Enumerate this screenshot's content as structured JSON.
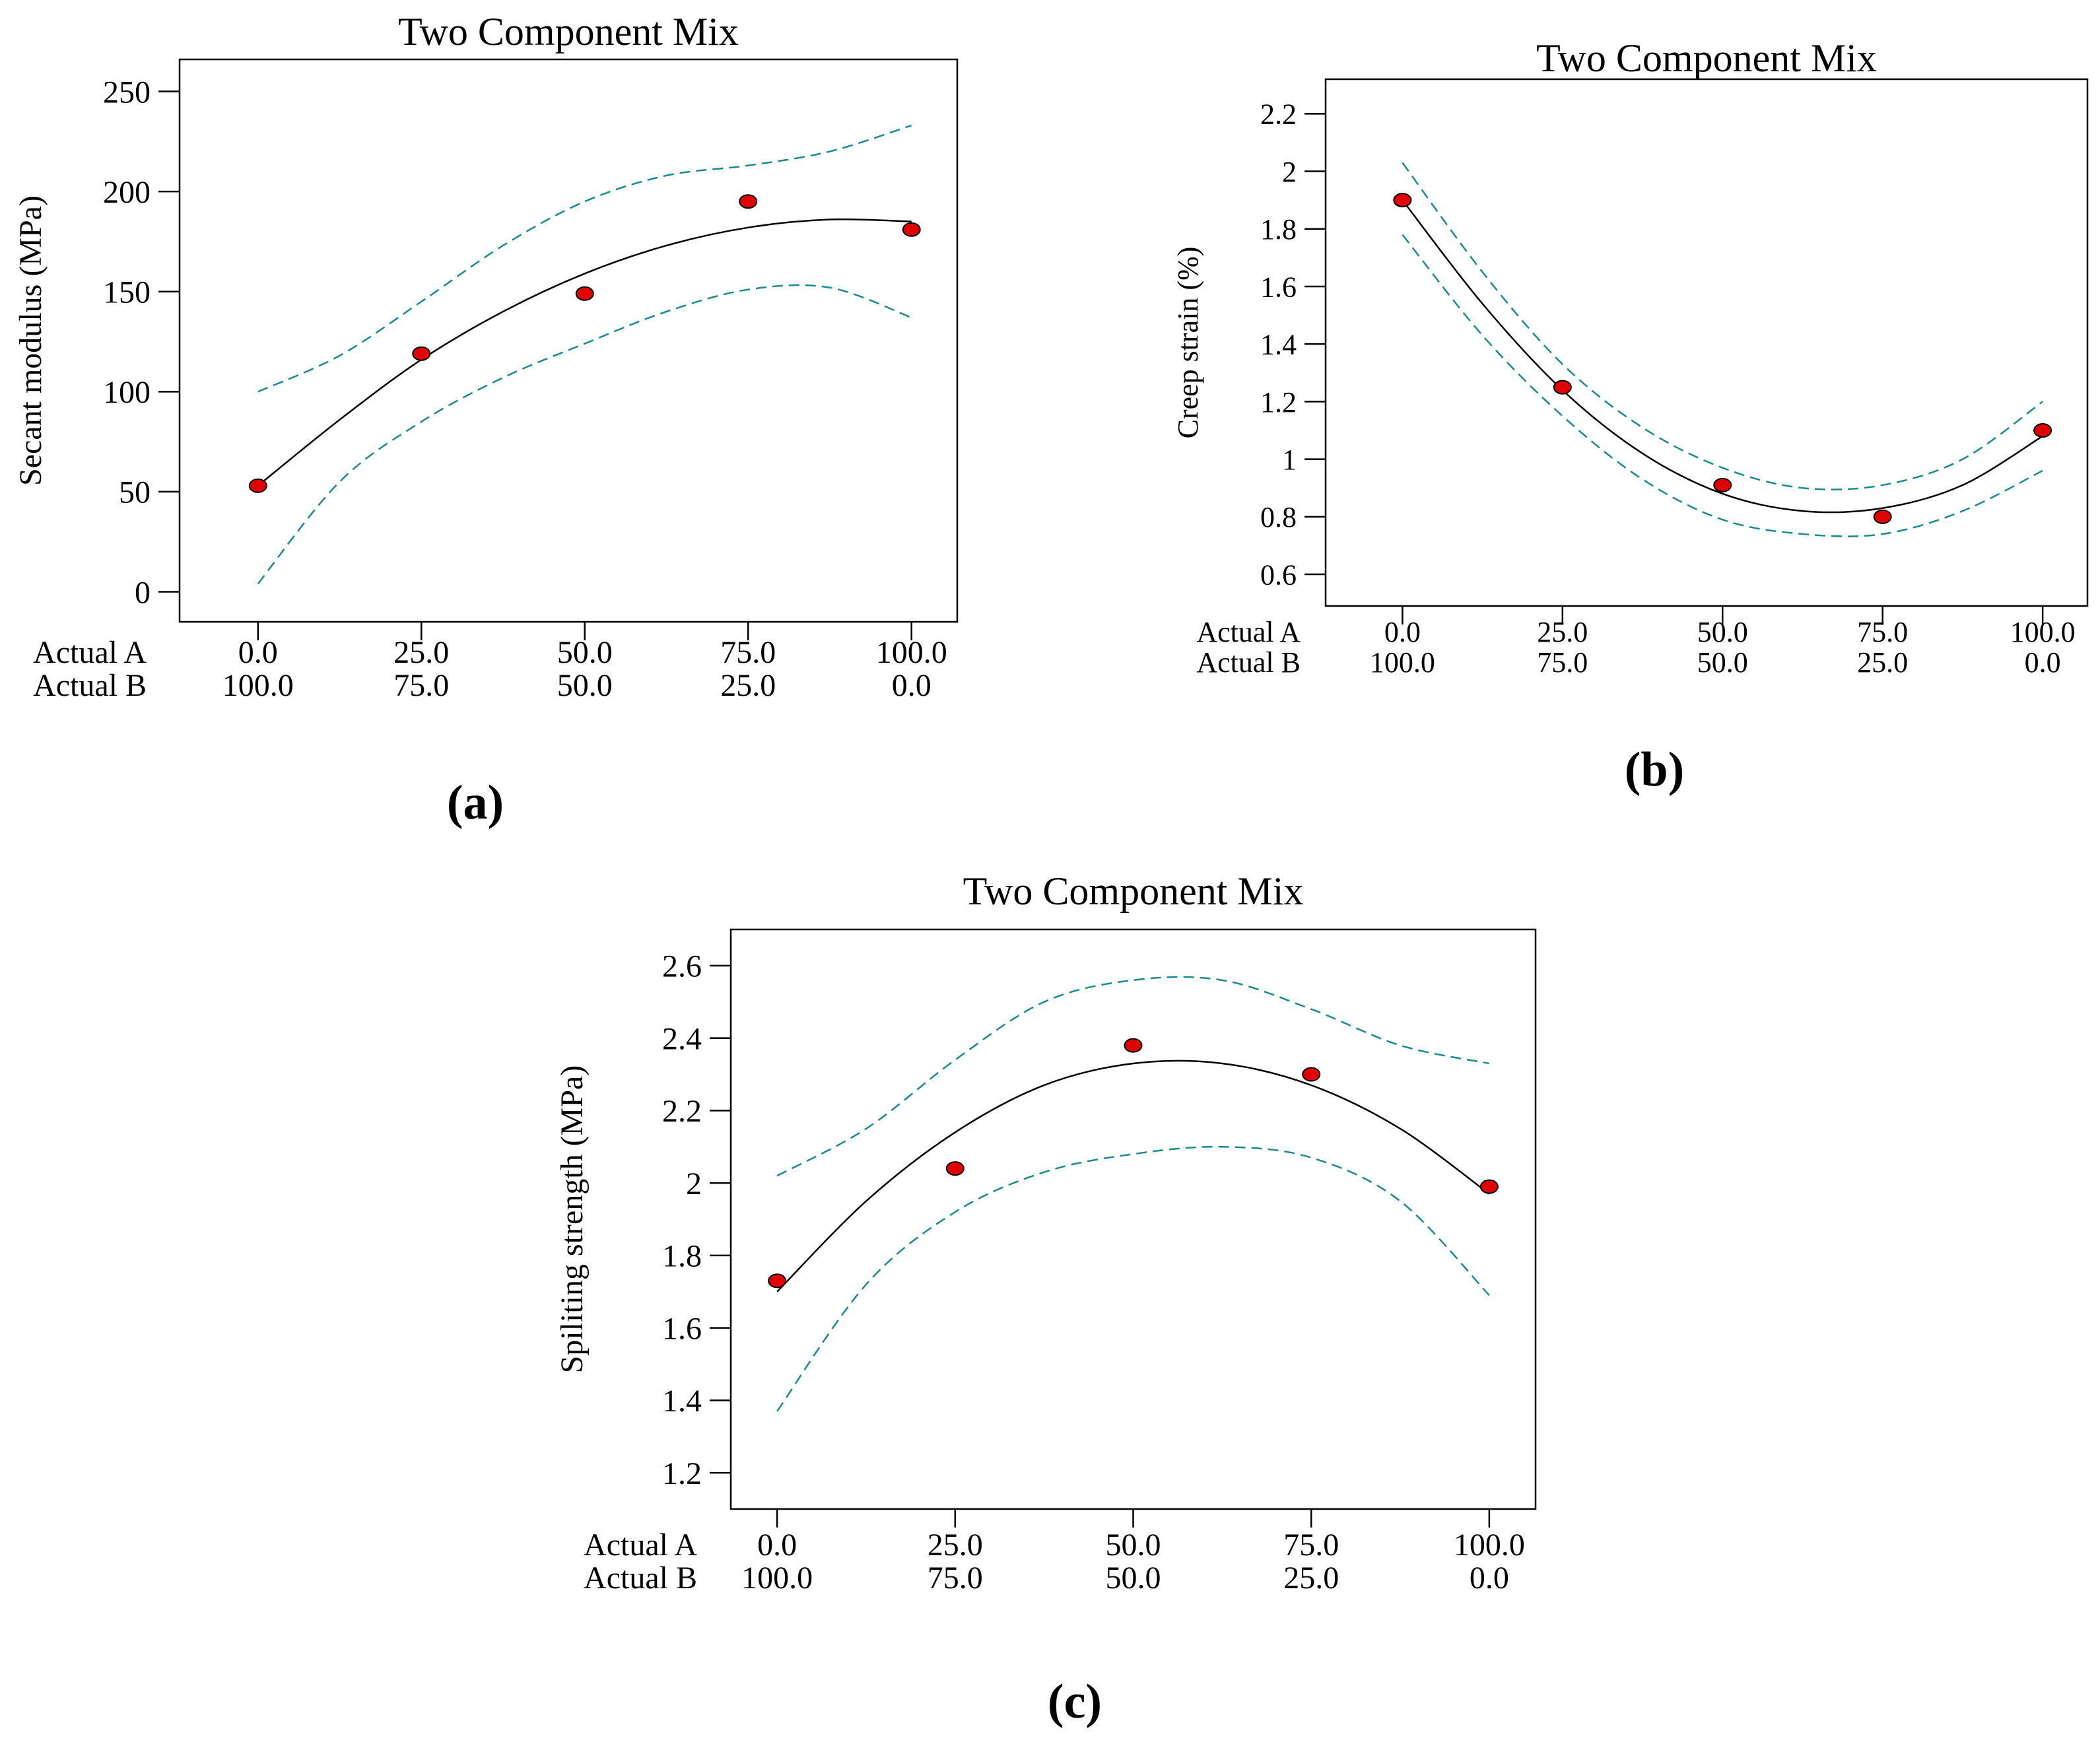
{
  "chart_data": [
    {
      "panel_label": "(a)",
      "type": "scatter",
      "title": "Two Component Mix",
      "ylabel": "Secant modulus (MPa)",
      "ylim": [
        -15,
        266
      ],
      "yticks": [
        0,
        50,
        100,
        150,
        200,
        250
      ],
      "y_tick_labels": [
        "0",
        "50",
        "100",
        "150",
        "200",
        "250"
      ],
      "xlim": [
        -12,
        107
      ],
      "xticks": [
        0,
        25,
        50,
        75,
        100
      ],
      "x_label_rows": [
        {
          "name": "Actual A",
          "labels": [
            "0.0",
            "25.0",
            "50.0",
            "75.0",
            "100.0"
          ]
        },
        {
          "name": "Actual B",
          "labels": [
            "100.0",
            "75.0",
            "50.0",
            "25.0",
            "0.0"
          ]
        }
      ],
      "points": {
        "x": [
          0,
          25,
          50,
          75,
          100
        ],
        "y": [
          53,
          119,
          149,
          195,
          181
        ]
      },
      "fit": {
        "x": [
          0,
          12.5,
          25,
          37.5,
          50,
          62.5,
          75,
          87.5,
          100
        ],
        "y": [
          53,
          86,
          116,
          140,
          159,
          173,
          182,
          186,
          185
        ]
      },
      "ci_upper": {
        "x": [
          0,
          12.5,
          25,
          37.5,
          50,
          62.5,
          75,
          87.5,
          100
        ],
        "y": [
          100,
          118,
          145,
          173,
          195,
          208,
          213,
          220,
          233
        ]
      },
      "ci_lower": {
        "x": [
          0,
          12.5,
          25,
          37.5,
          50,
          62.5,
          75,
          87.5,
          100
        ],
        "y": [
          4,
          55,
          85,
          107,
          124,
          140,
          151,
          152,
          137
        ]
      }
    },
    {
      "panel_label": "(b)",
      "type": "scatter",
      "title": "Two Component Mix",
      "ylabel": "Creep strain (%)",
      "ylim": [
        0.49,
        2.32
      ],
      "yticks": [
        0.6,
        0.8,
        1.0,
        1.2,
        1.4,
        1.6,
        1.8,
        2.0,
        2.2
      ],
      "y_tick_labels": [
        "0.6",
        "0.8",
        "1",
        "1.2",
        "1.4",
        "1.6",
        "1.8",
        "2",
        "2.2"
      ],
      "xlim": [
        -12,
        107
      ],
      "xticks": [
        0,
        25,
        50,
        75,
        100
      ],
      "x_label_rows": [
        {
          "name": "Actual A",
          "labels": [
            "0.0",
            "25.0",
            "50.0",
            "75.0",
            "100.0"
          ]
        },
        {
          "name": "Actual B",
          "labels": [
            "100.0",
            "75.0",
            "50.0",
            "25.0",
            "0.0"
          ]
        }
      ],
      "points": {
        "x": [
          0,
          25,
          50,
          75,
          100
        ],
        "y": [
          1.9,
          1.25,
          0.91,
          0.8,
          1.1
        ]
      },
      "fit": {
        "x": [
          0,
          12.5,
          25,
          37.5,
          50,
          62.5,
          75,
          87.5,
          100
        ],
        "y": [
          1.9,
          1.54,
          1.24,
          1.02,
          0.88,
          0.82,
          0.83,
          0.91,
          1.08
        ]
      },
      "ci_upper": {
        "x": [
          0,
          12.5,
          25,
          37.5,
          50,
          62.5,
          75,
          87.5,
          100
        ],
        "y": [
          2.03,
          1.65,
          1.33,
          1.11,
          0.97,
          0.9,
          0.91,
          1.0,
          1.2
        ]
      },
      "ci_lower": {
        "x": [
          0,
          12.5,
          25,
          37.5,
          50,
          62.5,
          75,
          87.5,
          100
        ],
        "y": [
          1.78,
          1.43,
          1.15,
          0.93,
          0.79,
          0.74,
          0.74,
          0.82,
          0.96
        ]
      }
    },
    {
      "panel_label": "(c)",
      "type": "scatter",
      "title": "Two Component Mix",
      "ylabel": "Spiliting strength (MPa)",
      "ylim": [
        1.1,
        2.7
      ],
      "yticks": [
        1.2,
        1.4,
        1.6,
        1.8,
        2.0,
        2.2,
        2.4,
        2.6
      ],
      "y_tick_labels": [
        "1.2",
        "1.4",
        "1.6",
        "1.8",
        "2",
        "2.2",
        "2.4",
        "2.6"
      ],
      "xlim": [
        -6.5,
        106.5
      ],
      "xticks": [
        0,
        25,
        50,
        75,
        100
      ],
      "x_label_rows": [
        {
          "name": "Actual A",
          "labels": [
            "0.0",
            "25.0",
            "50.0",
            "75.0",
            "100.0"
          ]
        },
        {
          "name": "Actual B",
          "labels": [
            "100.0",
            "75.0",
            "50.0",
            "25.0",
            "0.0"
          ]
        }
      ],
      "points": {
        "x": [
          0,
          25,
          50,
          75,
          100
        ],
        "y": [
          1.73,
          2.04,
          2.38,
          2.3,
          1.99
        ]
      },
      "fit": {
        "x": [
          0,
          12.5,
          25,
          37.5,
          50,
          62.5,
          75,
          87.5,
          100
        ],
        "y": [
          1.7,
          1.95,
          2.14,
          2.27,
          2.33,
          2.33,
          2.27,
          2.15,
          1.97
        ]
      },
      "ci_upper": {
        "x": [
          0,
          12.5,
          25,
          37.5,
          50,
          62.5,
          75,
          87.5,
          100
        ],
        "y": [
          2.02,
          2.15,
          2.34,
          2.5,
          2.56,
          2.56,
          2.48,
          2.38,
          2.33
        ]
      },
      "ci_lower": {
        "x": [
          0,
          12.5,
          25,
          37.5,
          50,
          62.5,
          75,
          87.5,
          100
        ],
        "y": [
          1.37,
          1.72,
          1.92,
          2.03,
          2.08,
          2.1,
          2.07,
          1.95,
          1.69
        ]
      }
    }
  ],
  "colors": {
    "fit_line": "#000000",
    "ci_line": "#1a8a8a",
    "point_fill": "#e00000",
    "point_stroke": "#000000",
    "axis": "#000000"
  }
}
